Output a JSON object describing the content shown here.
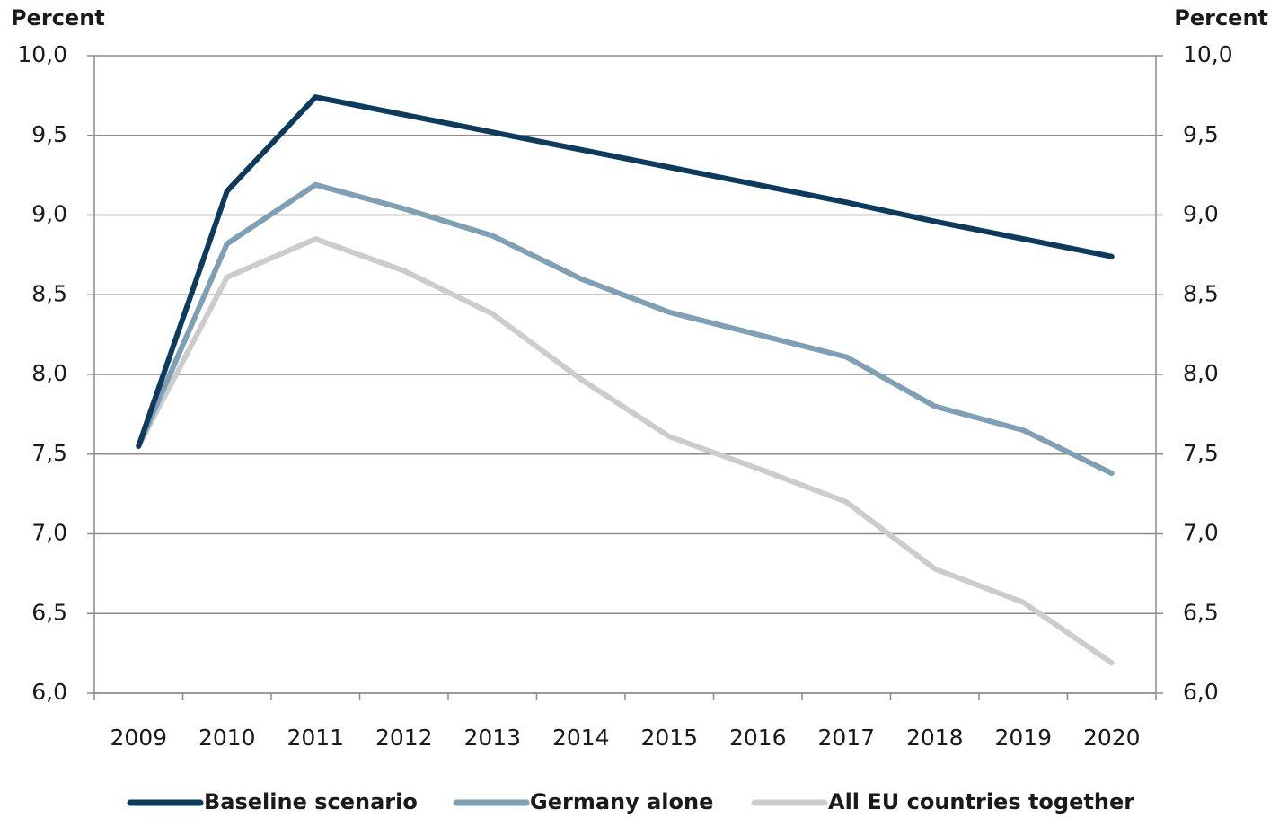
{
  "chart_data": {
    "type": "line",
    "y_label": "Percent",
    "y2_label": "Percent",
    "categories": [
      "2009",
      "2010",
      "2011",
      "2012",
      "2013",
      "2014",
      "2015",
      "2016",
      "2017",
      "2018",
      "2019",
      "2020"
    ],
    "series": [
      {
        "name": "Baseline scenario",
        "color": "#0d3b5e",
        "values": [
          7.55,
          9.15,
          9.74,
          9.63,
          9.52,
          9.41,
          9.3,
          9.19,
          9.08,
          8.96,
          8.85,
          8.74
        ]
      },
      {
        "name": "Germany alone",
        "color": "#7f9fb5",
        "values": [
          7.55,
          8.82,
          9.19,
          9.04,
          8.87,
          8.6,
          8.39,
          8.25,
          8.11,
          7.8,
          7.65,
          7.38
        ]
      },
      {
        "name": "All EU countries together",
        "color": "#cccccc",
        "values": [
          7.55,
          8.61,
          8.85,
          8.65,
          8.38,
          7.97,
          7.61,
          7.41,
          7.2,
          6.78,
          6.57,
          6.19
        ]
      }
    ],
    "ylim": [
      6,
      10
    ],
    "yticks": [
      {
        "value": 6,
        "label": "6,0"
      },
      {
        "value": 6.5,
        "label": "6,5"
      },
      {
        "value": 7,
        "label": "7,0"
      },
      {
        "value": 7.5,
        "label": "7,5"
      },
      {
        "value": 8,
        "label": "8,0"
      },
      {
        "value": 8.5,
        "label": "8,5"
      },
      {
        "value": 9,
        "label": "9,0"
      },
      {
        "value": 9.5,
        "label": "9,5"
      },
      {
        "value": 10,
        "label": "10,0"
      }
    ],
    "y2lim": [
      6,
      10
    ],
    "y2ticks": [
      {
        "value": 6,
        "label": "6,0"
      },
      {
        "value": 6.5,
        "label": "6,5"
      },
      {
        "value": 7,
        "label": "7,0"
      },
      {
        "value": 7.5,
        "label": "7,5"
      },
      {
        "value": 8,
        "label": "8,0"
      },
      {
        "value": 8.5,
        "label": "8,5"
      },
      {
        "value": 9,
        "label": "9,0"
      },
      {
        "value": 9.5,
        "label": "9,5"
      },
      {
        "value": 10,
        "label": "10,0"
      }
    ],
    "grid": true
  }
}
